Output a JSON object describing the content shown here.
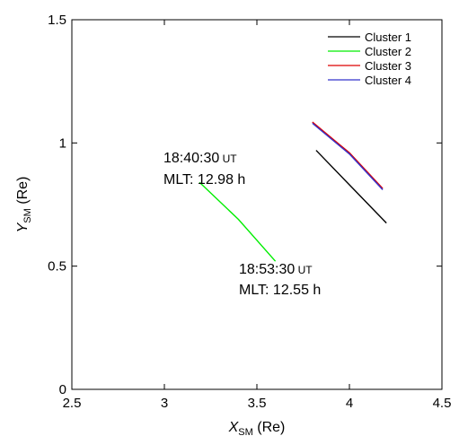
{
  "chart_data": {
    "type": "line",
    "xlabel_main": "X",
    "xlabel_sub": "SM",
    "xlabel_unit": " (Re)",
    "ylabel_main": "Y",
    "ylabel_sub": "SM",
    "ylabel_unit": " (Re)",
    "xlim": [
      2.5,
      4.5
    ],
    "ylim": [
      0,
      1.5
    ],
    "xticks": [
      2.5,
      3,
      3.5,
      4,
      4.5
    ],
    "xtick_labels": [
      "2.5",
      "3",
      "3.5",
      "4",
      "4.5"
    ],
    "yticks": [
      0,
      0.5,
      1,
      1.5
    ],
    "ytick_labels": [
      "0",
      "0.5",
      "1",
      "1.5"
    ],
    "grid": false,
    "legend_position": "top-right",
    "series": [
      {
        "name": "Cluster 1",
        "color": "#000000",
        "x": [
          3.82,
          4.0,
          4.2
        ],
        "y": [
          0.97,
          0.83,
          0.675
        ]
      },
      {
        "name": "Cluster 2",
        "color": "#00ee00",
        "x": [
          3.19,
          3.4,
          3.6
        ],
        "y": [
          0.84,
          0.69,
          0.52
        ]
      },
      {
        "name": "Cluster 3",
        "color": "#dd0000",
        "x": [
          3.8,
          4.0,
          4.18
        ],
        "y": [
          1.085,
          0.96,
          0.815
        ]
      },
      {
        "name": "Cluster 4",
        "color": "#3333cc",
        "x": [
          3.8,
          4.0,
          4.18
        ],
        "y": [
          1.08,
          0.955,
          0.81
        ]
      }
    ],
    "annotations": [
      {
        "id": "start",
        "time": "18:40:30",
        "unit": " UT",
        "mlt": "MLT: 12.98 h"
      },
      {
        "id": "end",
        "time": "18:53:30",
        "unit": " UT",
        "mlt": "MLT: 12.55 h"
      }
    ]
  }
}
